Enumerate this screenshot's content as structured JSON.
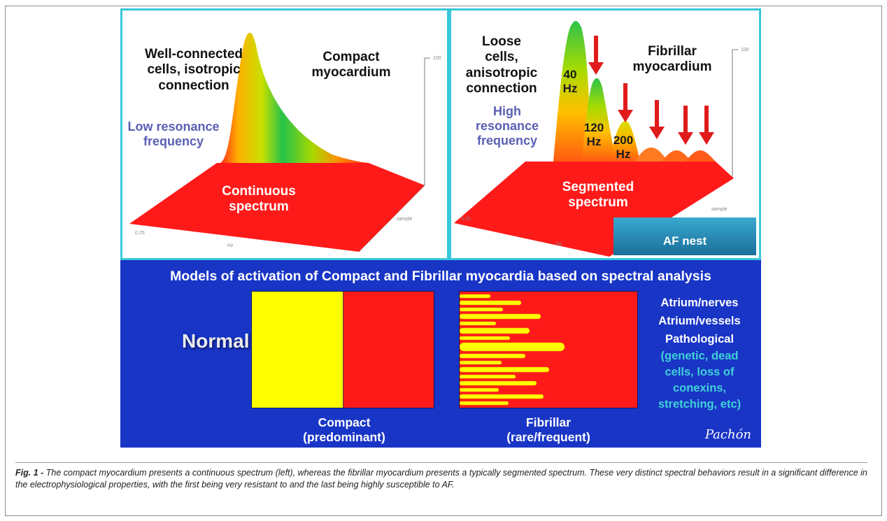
{
  "left_panel": {
    "label_top_left": "Well-connected cells, isotropic connection",
    "label_top_right": "Compact myocardium",
    "label_resonance": "Low resonance frequency",
    "label_spectrum": "Continuous spectrum"
  },
  "right_panel": {
    "label_top_left": "Loose cells, anisotropic connection",
    "label_top_right": "Fibrillar myocardium",
    "label_resonance": "High resonance frequency",
    "label_spectrum": "Segmented spectrum",
    "peak_labels": [
      "40 Hz",
      "120 Hz",
      "200 Hz"
    ],
    "af_nest": "AF nest"
  },
  "bottom_panel": {
    "title": "Models of activation of Compact and Fibrillar myocardia based on spectral analysis",
    "normal_label": "Normal",
    "compact_caption": "Compact (predominant)",
    "fibrillar_caption": "Fibrillar (rare/frequent)",
    "list_items": [
      "Atrium/nerves",
      "Atrium/vessels",
      "Pathological"
    ],
    "list_detail": "(genetic, dead cells, loss of conexins, stretching, etc)",
    "signature": "Pachón"
  },
  "caption": {
    "prefix": "Fig. 1 -",
    "text": "The compact myocardium presents a continuous spectrum (left), whereas the fibrillar myocardium presents a typically segmented spectrum. These very distinct spectral behaviors result in a significant difference in the electrophysiological properties, with the first being very resistant to and the last being highly susceptible to AF."
  },
  "colors": {
    "frame_border": "#39c7d9",
    "bottom_background": "#1935c6",
    "spectrum_red": "#ff1a1a",
    "compact_yellow": "#ffff00",
    "resonance_text": "#5a5fb3",
    "arrow_red": "#e01b1b"
  }
}
